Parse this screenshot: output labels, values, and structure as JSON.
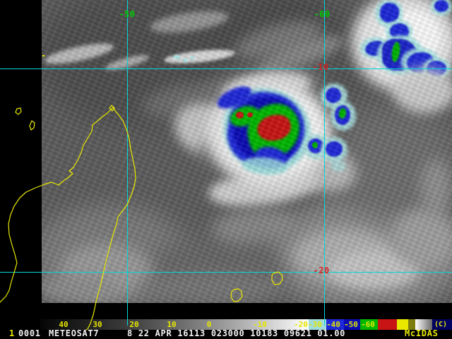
{
  "app": {
    "brand": "McIDAS"
  },
  "grid": {
    "line_color": "#00d8d8",
    "meridian_label_color": "#00c800",
    "parallel_label_color": "#d42222",
    "meridians": [
      "-50",
      "-60"
    ],
    "parallels": [
      "-10",
      "-20"
    ]
  },
  "colorbar": {
    "label_color": "#e6e600",
    "ticks": [
      "40",
      "30",
      "20",
      "10",
      "0",
      "-10",
      "-20",
      "-30",
      "-40",
      "-50",
      "-60"
    ],
    "copyright": "(C)",
    "enhancement_colors": {
      "cyan": "#a0dcdc",
      "blue": "#1e28d8",
      "dark_blue": "#0a0ab4",
      "green": "#00b800",
      "red": "#c81414",
      "yellow": "#e8e800",
      "olive": "#7e7e10",
      "navy": "#000060"
    }
  },
  "status_bar": {
    "frame_number": "1",
    "image_id": "0001",
    "satellite": "METEOSAT7",
    "datetime_fields": "8 22 APR 16113 023000 10183 09621 01.00",
    "brand": "McIDAS"
  },
  "overlay": {
    "coastline_color": "#e8e800"
  }
}
